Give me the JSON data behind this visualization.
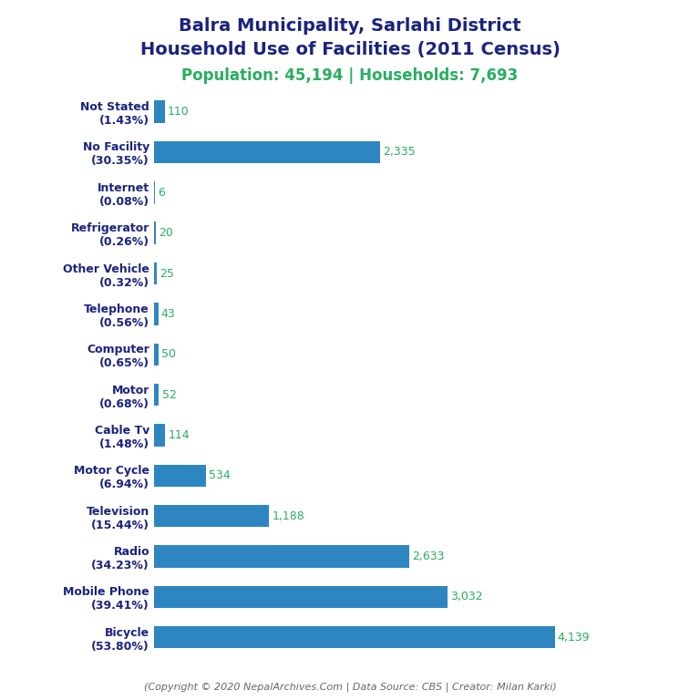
{
  "title_line1": "Balra Municipality, Sarlahi District",
  "title_line2": "Household Use of Facilities (2011 Census)",
  "subtitle": "Population: 45,194 | Households: 7,693",
  "footer": "(Copyright © 2020 NepalArchives.Com | Data Source: CBS | Creator: Milan Karki)",
  "categories": [
    "Not Stated\n(1.43%)",
    "No Facility\n(30.35%)",
    "Internet\n(0.08%)",
    "Refrigerator\n(0.26%)",
    "Other Vehicle\n(0.32%)",
    "Telephone\n(0.56%)",
    "Computer\n(0.65%)",
    "Motor\n(0.68%)",
    "Cable Tv\n(1.48%)",
    "Motor Cycle\n(6.94%)",
    "Television\n(15.44%)",
    "Radio\n(34.23%)",
    "Mobile Phone\n(39.41%)",
    "Bicycle\n(53.80%)"
  ],
  "values": [
    110,
    2335,
    6,
    20,
    25,
    43,
    50,
    52,
    114,
    534,
    1188,
    2633,
    3032,
    4139
  ],
  "bar_color": "#2e86c1",
  "label_color": "#27ae60",
  "title_color": "#1a237e",
  "subtitle_color": "#27ae60",
  "footer_color": "#666666",
  "background_color": "#ffffff",
  "xlim": [
    0,
    4700
  ],
  "title_fontsize": 14,
  "subtitle_fontsize": 12,
  "label_fontsize": 9,
  "ytick_fontsize": 9,
  "footer_fontsize": 8
}
